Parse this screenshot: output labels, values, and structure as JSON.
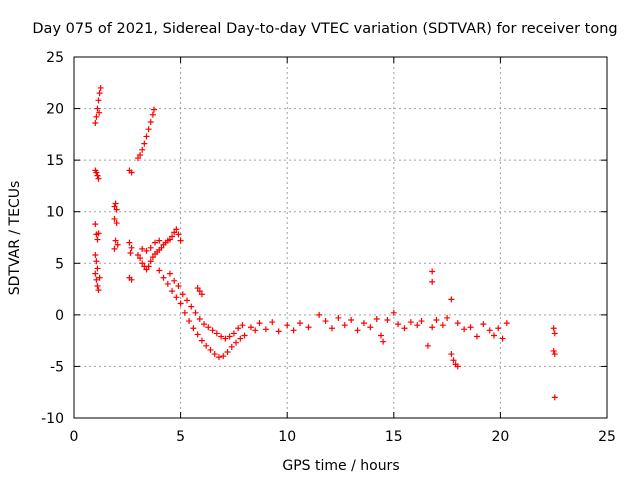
{
  "chart_data": {
    "type": "scatter",
    "title": "Day 075 of 2021, Sidereal Day-to-day VTEC variation (SDTVAR) for receiver tong",
    "xlabel": "GPS time / hours",
    "ylabel": "SDTVAR / TECUs",
    "xlim": [
      0,
      25
    ],
    "ylim": [
      -10,
      25
    ],
    "x_ticks": [
      "0",
      "5",
      "10",
      "15",
      "20",
      "25"
    ],
    "y_ticks": [
      "-10",
      "-5",
      "0",
      "5",
      "10",
      "15",
      "20",
      "25"
    ],
    "grid": true,
    "marker": "+",
    "color": "#ff0000",
    "series": [
      {
        "name": "SDTVAR",
        "points": [
          [
            1.0,
            18.6
          ],
          [
            1.05,
            19.2
          ],
          [
            1.1,
            20.0
          ],
          [
            1.15,
            20.8
          ],
          [
            1.2,
            21.5
          ],
          [
            1.25,
            22.0
          ],
          [
            1.18,
            19.6
          ],
          [
            1.0,
            14.0
          ],
          [
            1.05,
            13.8
          ],
          [
            1.1,
            13.5
          ],
          [
            1.15,
            13.2
          ],
          [
            1.0,
            8.8
          ],
          [
            1.05,
            7.8
          ],
          [
            1.1,
            7.3
          ],
          [
            1.15,
            7.9
          ],
          [
            1.0,
            5.8
          ],
          [
            1.05,
            5.2
          ],
          [
            1.1,
            4.5
          ],
          [
            1.0,
            4.0
          ],
          [
            1.05,
            3.4
          ],
          [
            1.1,
            2.8
          ],
          [
            1.15,
            2.4
          ],
          [
            1.2,
            3.6
          ],
          [
            1.9,
            10.5
          ],
          [
            1.95,
            10.8
          ],
          [
            2.0,
            10.2
          ],
          [
            1.9,
            9.3
          ],
          [
            2.0,
            8.9
          ],
          [
            1.95,
            7.2
          ],
          [
            2.05,
            6.8
          ],
          [
            1.9,
            6.4
          ],
          [
            2.6,
            14.0
          ],
          [
            2.7,
            13.8
          ],
          [
            2.6,
            7.0
          ],
          [
            2.7,
            6.5
          ],
          [
            2.65,
            6.0
          ],
          [
            2.6,
            3.6
          ],
          [
            2.7,
            3.4
          ],
          [
            3.0,
            15.2
          ],
          [
            3.1,
            15.5
          ],
          [
            3.2,
            16.0
          ],
          [
            3.3,
            16.6
          ],
          [
            3.4,
            17.3
          ],
          [
            3.5,
            18.0
          ],
          [
            3.6,
            18.7
          ],
          [
            3.7,
            19.4
          ],
          [
            3.75,
            19.9
          ],
          [
            3.0,
            5.8
          ],
          [
            3.1,
            5.5
          ],
          [
            3.2,
            5.0
          ],
          [
            3.3,
            4.7
          ],
          [
            3.4,
            4.4
          ],
          [
            3.5,
            4.7
          ],
          [
            3.6,
            5.2
          ],
          [
            3.7,
            5.6
          ],
          [
            3.8,
            5.9
          ],
          [
            3.9,
            6.1
          ],
          [
            4.0,
            6.3
          ],
          [
            4.1,
            6.5
          ],
          [
            4.2,
            6.8
          ],
          [
            4.3,
            7.0
          ],
          [
            4.4,
            7.2
          ],
          [
            4.5,
            7.3
          ],
          [
            4.6,
            7.6
          ],
          [
            4.7,
            8.0
          ],
          [
            4.8,
            8.3
          ],
          [
            4.9,
            7.8
          ],
          [
            5.0,
            7.2
          ],
          [
            3.2,
            6.4
          ],
          [
            3.4,
            6.2
          ],
          [
            3.6,
            6.5
          ],
          [
            3.8,
            7.0
          ],
          [
            4.0,
            7.2
          ],
          [
            4.0,
            4.3
          ],
          [
            4.2,
            3.6
          ],
          [
            4.4,
            3.0
          ],
          [
            4.6,
            2.3
          ],
          [
            4.8,
            1.7
          ],
          [
            5.0,
            1.1
          ],
          [
            5.2,
            0.2
          ],
          [
            5.4,
            -0.6
          ],
          [
            5.6,
            -1.3
          ],
          [
            5.8,
            -1.9
          ],
          [
            6.0,
            -2.5
          ],
          [
            6.2,
            -3.0
          ],
          [
            6.4,
            -3.4
          ],
          [
            6.6,
            -3.8
          ],
          [
            6.8,
            -4.1
          ],
          [
            7.0,
            -4.0
          ],
          [
            7.2,
            -3.6
          ],
          [
            7.4,
            -3.1
          ],
          [
            7.6,
            -2.7
          ],
          [
            7.8,
            -2.3
          ],
          [
            8.0,
            -2.0
          ],
          [
            4.5,
            4.0
          ],
          [
            4.7,
            3.3
          ],
          [
            4.9,
            2.8
          ],
          [
            5.1,
            2.0
          ],
          [
            5.3,
            1.4
          ],
          [
            5.5,
            0.8
          ],
          [
            5.7,
            0.2
          ],
          [
            5.9,
            -0.4
          ],
          [
            6.1,
            -0.9
          ],
          [
            6.3,
            -1.2
          ],
          [
            6.5,
            -1.5
          ],
          [
            6.7,
            -1.8
          ],
          [
            6.9,
            -2.1
          ],
          [
            7.1,
            -2.3
          ],
          [
            7.3,
            -2.1
          ],
          [
            7.5,
            -1.8
          ],
          [
            7.7,
            -1.3
          ],
          [
            7.9,
            -1.0
          ],
          [
            5.8,
            2.6
          ],
          [
            5.9,
            2.3
          ],
          [
            6.0,
            2.0
          ],
          [
            8.3,
            -1.2
          ],
          [
            8.5,
            -1.5
          ],
          [
            8.7,
            -0.8
          ],
          [
            9.0,
            -1.4
          ],
          [
            9.3,
            -0.7
          ],
          [
            9.6,
            -1.6
          ],
          [
            10.0,
            -1.0
          ],
          [
            10.3,
            -1.5
          ],
          [
            10.6,
            -0.8
          ],
          [
            11.0,
            -1.2
          ],
          [
            11.5,
            0.0
          ],
          [
            11.8,
            -0.6
          ],
          [
            12.1,
            -1.3
          ],
          [
            12.4,
            -0.3
          ],
          [
            12.7,
            -1.0
          ],
          [
            13.0,
            -0.5
          ],
          [
            13.3,
            -1.5
          ],
          [
            13.6,
            -0.8
          ],
          [
            13.9,
            -1.2
          ],
          [
            14.2,
            -0.4
          ],
          [
            14.4,
            -2.0
          ],
          [
            14.5,
            -2.6
          ],
          [
            14.7,
            -0.5
          ],
          [
            15.0,
            0.2
          ],
          [
            15.2,
            -0.9
          ],
          [
            15.5,
            -1.3
          ],
          [
            15.8,
            -0.7
          ],
          [
            16.1,
            -1.0
          ],
          [
            16.3,
            -0.6
          ],
          [
            16.6,
            -3.0
          ],
          [
            16.8,
            -1.2
          ],
          [
            17.0,
            -0.5
          ],
          [
            17.3,
            -1.0
          ],
          [
            17.5,
            -0.3
          ],
          [
            17.7,
            1.5
          ],
          [
            18.0,
            -0.8
          ],
          [
            18.3,
            -1.4
          ],
          [
            18.6,
            -1.2
          ],
          [
            18.9,
            -2.1
          ],
          [
            19.2,
            -0.9
          ],
          [
            19.5,
            -1.5
          ],
          [
            19.7,
            -2.0
          ],
          [
            19.9,
            -1.3
          ],
          [
            20.1,
            -2.3
          ],
          [
            20.3,
            -0.8
          ],
          [
            16.8,
            4.2
          ],
          [
            16.8,
            3.2
          ],
          [
            17.7,
            -3.8
          ],
          [
            17.8,
            -4.4
          ],
          [
            17.9,
            -4.8
          ],
          [
            18.0,
            -5.0
          ],
          [
            22.5,
            -1.3
          ],
          [
            22.55,
            -1.8
          ],
          [
            22.5,
            -3.5
          ],
          [
            22.55,
            -3.8
          ],
          [
            22.55,
            -8.0
          ]
        ]
      }
    ]
  }
}
